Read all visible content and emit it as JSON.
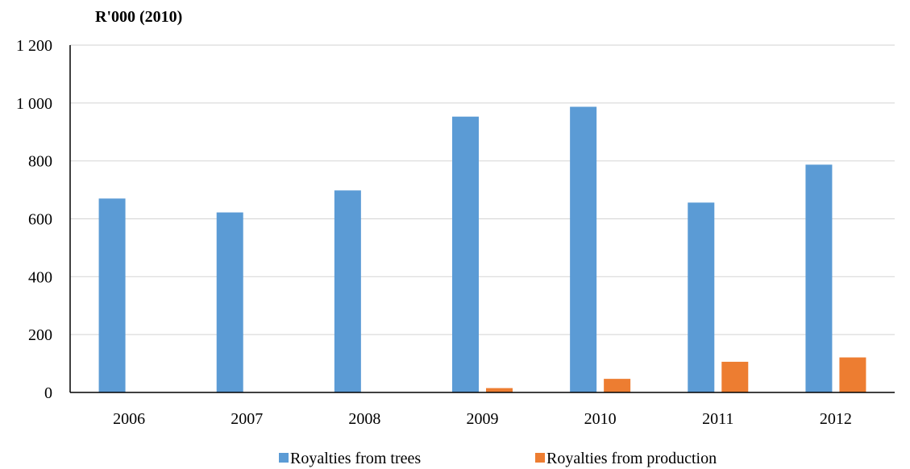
{
  "chart_data": {
    "type": "bar",
    "title": "",
    "xlabel": "",
    "ylabel": "R'000 (2010)",
    "ylim": [
      0,
      1200
    ],
    "yticks": [
      0,
      200,
      400,
      600,
      800,
      1000,
      1200
    ],
    "ytick_labels": [
      "0",
      "200",
      "400",
      "600",
      "800",
      "1 000",
      "1 200"
    ],
    "categories": [
      "2006",
      "2007",
      "2008",
      "2009",
      "2010",
      "2011",
      "2012"
    ],
    "series": [
      {
        "name": "Royalties from trees",
        "color": "#5B9BD5",
        "values": [
          670,
          622,
          698,
          953,
          987,
          656,
          787
        ]
      },
      {
        "name": "Royalties from production",
        "color": "#ED7D31",
        "values": [
          0,
          0,
          0,
          15,
          47,
          106,
          121
        ]
      }
    ],
    "grid": true,
    "legend_position": "bottom"
  }
}
